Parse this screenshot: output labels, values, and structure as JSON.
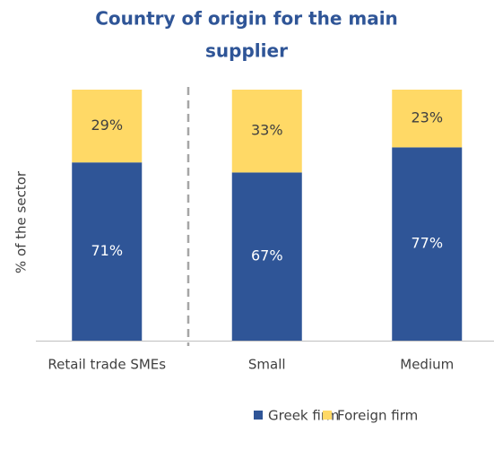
{
  "chart_data": {
    "type": "stacked_bar",
    "title": [
      "Country of origin for the main",
      "supplier"
    ],
    "ylabel": "% of the sector",
    "categories": [
      "Retail trade SMEs",
      "Small",
      "Medium"
    ],
    "series": [
      {
        "name": "Greek firm",
        "color": "#2f5597",
        "values": [
          71,
          67,
          77
        ],
        "value_labels": [
          "71%",
          "67%",
          "77%"
        ]
      },
      {
        "name": "Foreign firm",
        "color": "#ffd966",
        "values": [
          29,
          33,
          23
        ],
        "value_labels": [
          "29%",
          "33%",
          "23%"
        ]
      }
    ],
    "ylim": [
      0,
      100
    ],
    "grid": false,
    "legend": "bottom"
  }
}
